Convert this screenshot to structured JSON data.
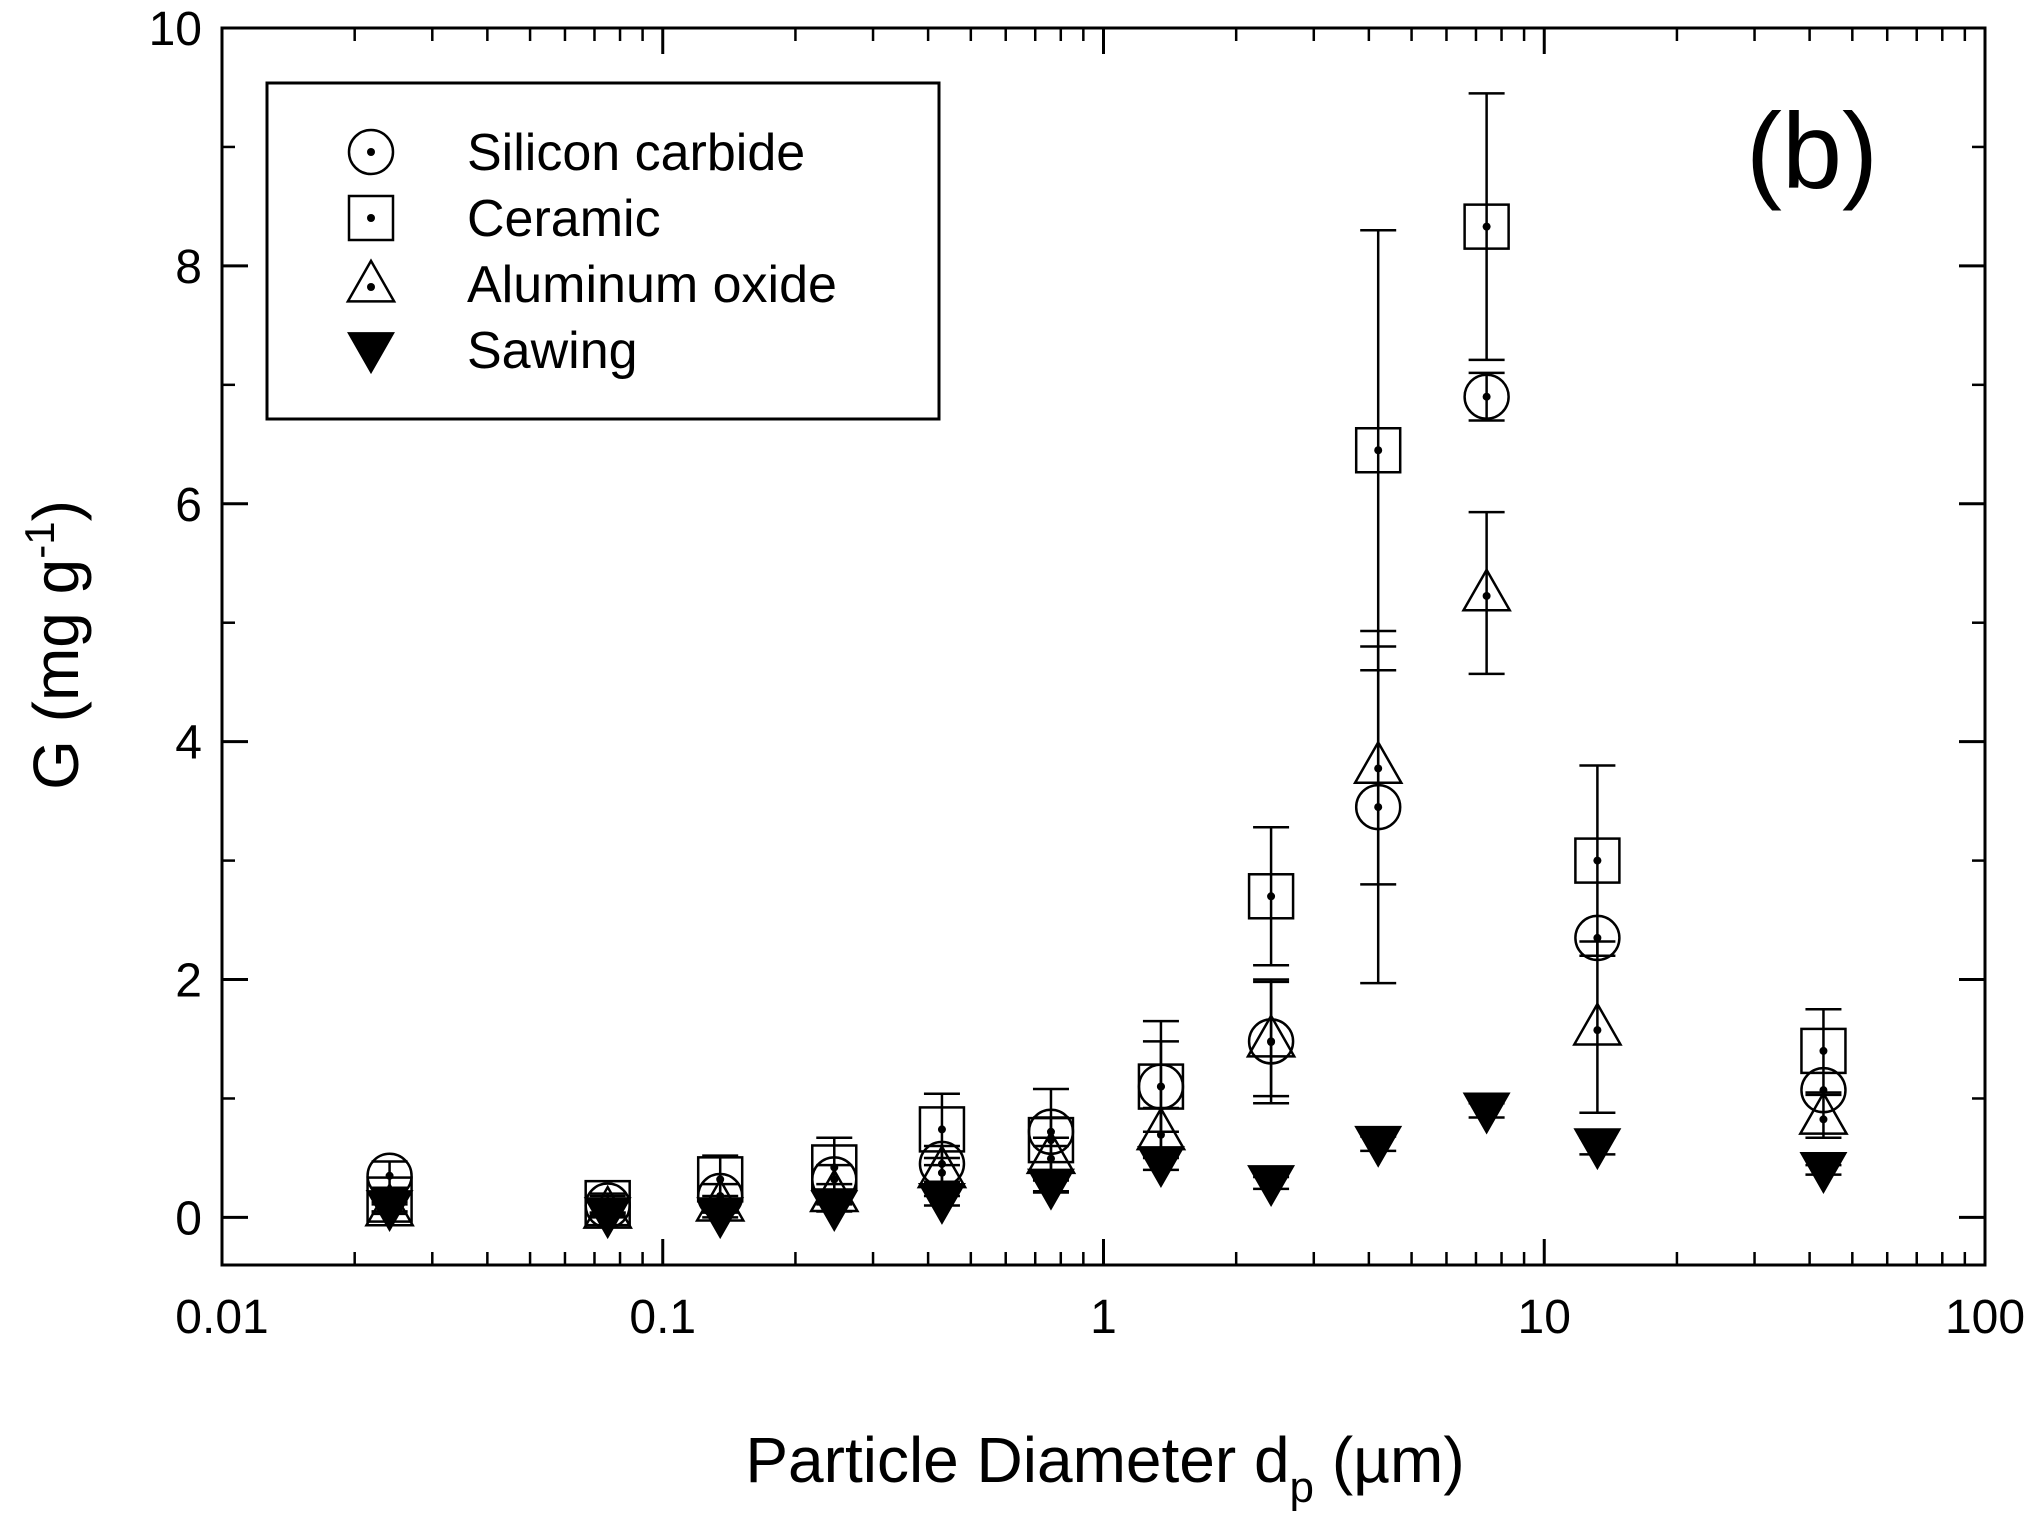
{
  "chart_data": {
    "type": "scatter",
    "panel_label": "(b)",
    "xlabel": "Particle Diameter d",
    "xlabel_sub": "p",
    "xlabel_unit": " (µm)",
    "ylabel": "G (mg g",
    "ylabel_sup": "-1",
    "ylabel_close": ")",
    "xscale": "log",
    "xlim": [
      0.01,
      100
    ],
    "ylim": [
      -0.4,
      10
    ],
    "x_ticks": [
      {
        "value": 0.01,
        "label": "0.01"
      },
      {
        "value": 0.1,
        "label": "0.1"
      },
      {
        "value": 1,
        "label": "1"
      },
      {
        "value": 10,
        "label": "10"
      },
      {
        "value": 100,
        "label": "100"
      }
    ],
    "y_ticks": [
      {
        "value": 0,
        "label": "0"
      },
      {
        "value": 2,
        "label": "2"
      },
      {
        "value": 4,
        "label": "4"
      },
      {
        "value": 6,
        "label": "6"
      },
      {
        "value": 8,
        "label": "8"
      },
      {
        "value": 10,
        "label": "10"
      }
    ],
    "grid": false,
    "legend_position": "top-left",
    "series": [
      {
        "name": "Silicon carbide",
        "marker": "circle-dot",
        "color": "#000000",
        "points": [
          {
            "x": 0.024,
            "y": 0.35,
            "err": 0.12
          },
          {
            "x": 0.075,
            "y": 0.1,
            "err": 0.08
          },
          {
            "x": 0.135,
            "y": 0.18,
            "err": 0.1
          },
          {
            "x": 0.245,
            "y": 0.32,
            "err": 0.12
          },
          {
            "x": 0.43,
            "y": 0.45,
            "err": 0.15
          },
          {
            "x": 0.76,
            "y": 0.72,
            "err": 0.12
          },
          {
            "x": 1.35,
            "y": 1.1,
            "err": 0.38
          },
          {
            "x": 2.4,
            "y": 1.48,
            "err": 0.52
          },
          {
            "x": 4.2,
            "y": 3.45,
            "err": 1.48
          },
          {
            "x": 7.4,
            "y": 6.9,
            "err": 0.2
          },
          {
            "x": 13.2,
            "y": 2.35,
            "err": 0.0
          },
          {
            "x": 43,
            "y": 1.07,
            "err": 0.0
          }
        ]
      },
      {
        "name": "Ceramic",
        "marker": "square-dot",
        "color": "#000000",
        "points": [
          {
            "x": 0.024,
            "y": 0.15,
            "err": 0.1
          },
          {
            "x": 0.075,
            "y": 0.12,
            "err": 0.08
          },
          {
            "x": 0.135,
            "y": 0.32,
            "err": 0.2
          },
          {
            "x": 0.245,
            "y": 0.42,
            "err": 0.25
          },
          {
            "x": 0.43,
            "y": 0.74,
            "err": 0.3
          },
          {
            "x": 0.76,
            "y": 0.65,
            "err": 0.43
          },
          {
            "x": 1.35,
            "y": 1.1,
            "err": 0.55
          },
          {
            "x": 2.4,
            "y": 2.7,
            "err": 0.58
          },
          {
            "x": 4.2,
            "y": 6.45,
            "err": 1.85
          },
          {
            "x": 7.4,
            "y": 8.33,
            "err": 1.12
          },
          {
            "x": 13.2,
            "y": 3.0,
            "err": 0.8
          },
          {
            "x": 43,
            "y": 1.4,
            "err": 0.35
          }
        ]
      },
      {
        "name": "Aluminum oxide",
        "marker": "triangle-up-dot",
        "color": "#000000",
        "points": [
          {
            "x": 0.024,
            "y": 0.08,
            "err": 0.05
          },
          {
            "x": 0.075,
            "y": 0.06,
            "err": 0.05
          },
          {
            "x": 0.135,
            "y": 0.12,
            "err": 0.06
          },
          {
            "x": 0.245,
            "y": 0.2,
            "err": 0.08
          },
          {
            "x": 0.43,
            "y": 0.4,
            "err": 0.1
          },
          {
            "x": 0.76,
            "y": 0.52,
            "err": 0.15
          },
          {
            "x": 1.35,
            "y": 0.72,
            "err": 0.2
          },
          {
            "x": 2.4,
            "y": 1.5,
            "err": 0.48
          },
          {
            "x": 4.2,
            "y": 3.8,
            "err": 1.0
          },
          {
            "x": 7.4,
            "y": 5.25,
            "err": 0.68
          },
          {
            "x": 13.2,
            "y": 1.6,
            "err": 0.72
          },
          {
            "x": 43,
            "y": 0.85,
            "err": 0.18
          }
        ]
      },
      {
        "name": "Sawing",
        "marker": "triangle-down-filled",
        "color": "#000000",
        "points": [
          {
            "x": 0.024,
            "y": 0.08,
            "err": 0.03
          },
          {
            "x": 0.075,
            "y": 0.02,
            "err": 0.02
          },
          {
            "x": 0.135,
            "y": 0.02,
            "err": 0.02
          },
          {
            "x": 0.245,
            "y": 0.08,
            "err": 0.03
          },
          {
            "x": 0.43,
            "y": 0.14,
            "err": 0.04
          },
          {
            "x": 0.76,
            "y": 0.26,
            "err": 0.05
          },
          {
            "x": 1.35,
            "y": 0.45,
            "err": 0.05
          },
          {
            "x": 2.4,
            "y": 0.29,
            "err": 0.05
          },
          {
            "x": 4.2,
            "y": 0.62,
            "err": 0.06
          },
          {
            "x": 7.4,
            "y": 0.9,
            "err": 0.06
          },
          {
            "x": 13.2,
            "y": 0.6,
            "err": 0.07
          },
          {
            "x": 43,
            "y": 0.4,
            "err": 0.04
          }
        ]
      }
    ]
  }
}
